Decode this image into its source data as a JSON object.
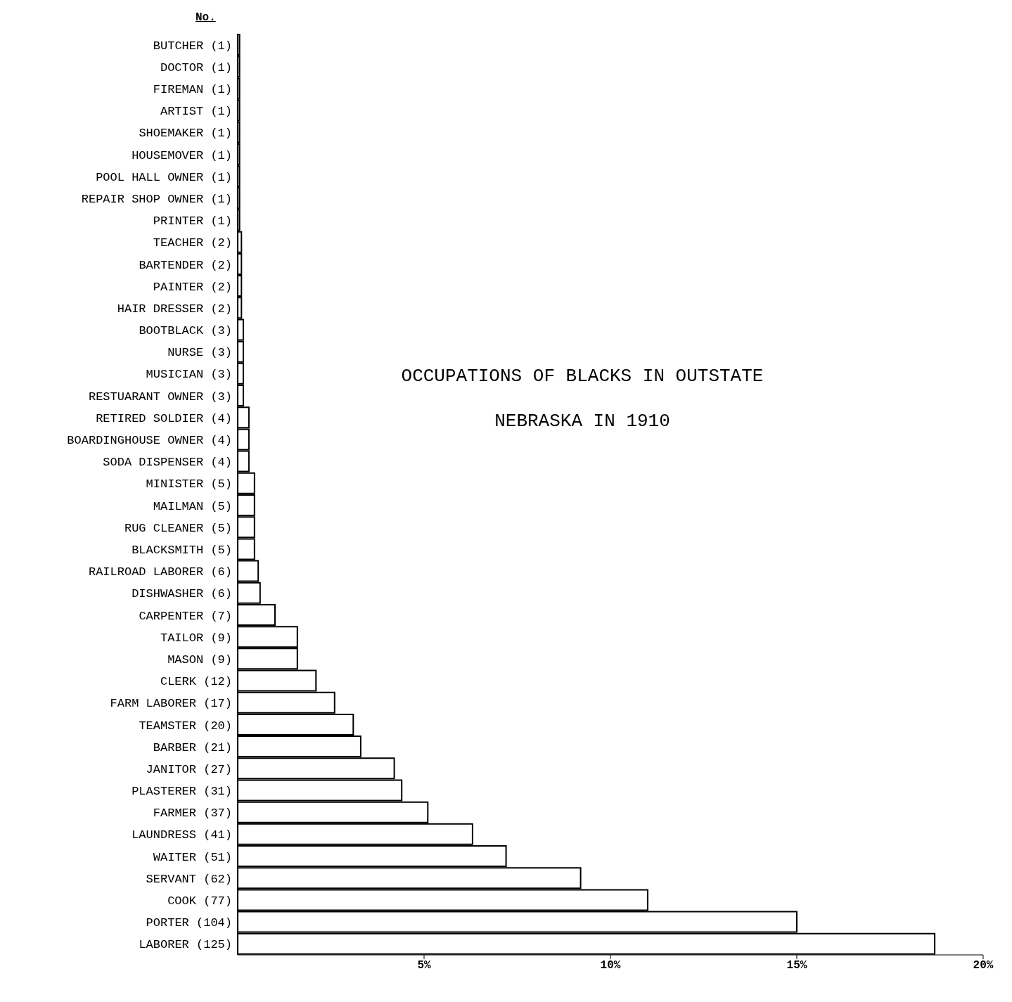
{
  "chart_data": {
    "type": "bar",
    "orientation": "horizontal",
    "title": "OCCUPATIONS OF BLACKS IN OUTSTATE NEBRASKA IN 1910",
    "annotations": [
      "No."
    ],
    "categories": [
      "BUTCHER (1)",
      "DOCTOR (1)",
      "FIREMAN (1)",
      "ARTIST (1)",
      "SHOEMAKER (1)",
      "HOUSEMOVER (1)",
      "POOL HALL OWNER (1)",
      "REPAIR SHOP OWNER (1)",
      "PRINTER (1)",
      "TEACHER (2)",
      "BARTENDER (2)",
      "PAINTER (2)",
      "HAIR DRESSER (2)",
      "BOOTBLACK (3)",
      "NURSE (3)",
      "MUSICIAN (3)",
      "RESTUARANT OWNER (3)",
      "RETIRED SOLDIER (4)",
      "BOARDINGHOUSE OWNER (4)",
      "SODA DISPENSER (4)",
      "MINISTER (5)",
      "MAILMAN (5)",
      "RUG CLEANER (5)",
      "BLACKSMITH (5)",
      "RAILROAD LABORER (6)",
      "DISHWASHER (6)",
      "CARPENTER (7)",
      "TAILOR (9)",
      "MASON (9)",
      "CLERK (12)",
      "FARM LABORER (17)",
      "TEAMSTER (20)",
      "BARBER (21)",
      "JANITOR (27)",
      "PLASTERER (31)",
      "FARMER (37)",
      "LAUNDRESS (41)",
      "WAITER (51)",
      "SERVANT (62)",
      "COOK (77)",
      "PORTER (104)",
      "LABORER (125)"
    ],
    "values": [
      0.05,
      0.05,
      0.05,
      0.05,
      0.05,
      0.05,
      0.05,
      0.05,
      0.05,
      0.1,
      0.1,
      0.1,
      0.1,
      0.15,
      0.15,
      0.15,
      0.15,
      0.3,
      0.3,
      0.3,
      0.45,
      0.45,
      0.45,
      0.45,
      0.55,
      0.6,
      1.0,
      1.6,
      1.6,
      2.1,
      2.6,
      3.1,
      3.3,
      4.2,
      4.4,
      5.1,
      6.3,
      7.2,
      9.2,
      11.0,
      15.0,
      18.7
    ],
    "color": "#ffffff",
    "xlim": [
      0,
      20
    ],
    "xticks": [
      {
        "value": 5,
        "label": "5%"
      },
      {
        "value": 10,
        "label": "10%"
      },
      {
        "value": 15,
        "label": "15%"
      },
      {
        "value": 20,
        "label": "20%"
      }
    ],
    "grid": false
  }
}
